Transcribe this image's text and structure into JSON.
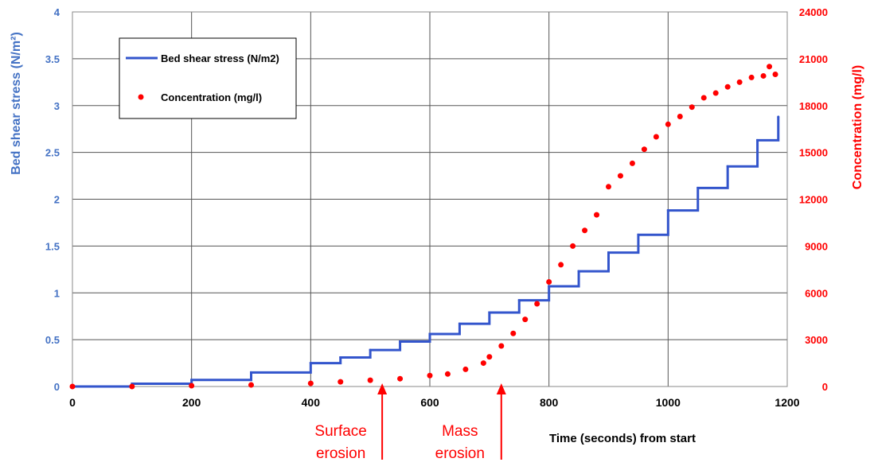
{
  "chart_data": {
    "type": "line",
    "xlabel": "Time (seconds) from start",
    "ylabel": "Bed shear stress (N/m²)",
    "y2label": "Concentration (mg/l)",
    "xlim": [
      0,
      1200
    ],
    "ylim": [
      0,
      4
    ],
    "y2lim": [
      0,
      24000
    ],
    "x_ticks": [
      "0",
      "200",
      "400",
      "600",
      "800",
      "1000",
      "1200"
    ],
    "y_ticks": [
      "0",
      "0.5",
      "1",
      "1.5",
      "2",
      "2.5",
      "3",
      "3.5",
      "4"
    ],
    "y2_ticks": [
      "0",
      "3000",
      "6000",
      "9000",
      "12000",
      "15000",
      "18000",
      "21000",
      "24000"
    ],
    "grid": true,
    "legend_position": "top-left",
    "series": [
      {
        "name": "Bed shear stress (N/m2)",
        "axis": "left",
        "color": "#3355CC",
        "style": "step-line",
        "x": [
          0,
          100,
          200,
          300,
          400,
          450,
          500,
          550,
          600,
          650,
          700,
          750,
          800,
          850,
          900,
          950,
          1000,
          1050,
          1100,
          1150,
          1185
        ],
        "y": [
          0,
          0.03,
          0.07,
          0.15,
          0.25,
          0.31,
          0.39,
          0.48,
          0.56,
          0.67,
          0.79,
          0.92,
          1.07,
          1.23,
          1.43,
          1.62,
          1.88,
          2.12,
          2.35,
          2.63,
          2.88
        ]
      },
      {
        "name": "Concentration (mg/l)",
        "axis": "right",
        "color": "#FF0000",
        "style": "markers",
        "x": [
          0,
          100,
          200,
          300,
          400,
          450,
          500,
          550,
          600,
          630,
          660,
          690,
          700,
          720,
          740,
          760,
          780,
          800,
          820,
          840,
          860,
          880,
          900,
          920,
          940,
          960,
          980,
          1000,
          1020,
          1040,
          1060,
          1080,
          1100,
          1120,
          1140,
          1160,
          1170,
          1180
        ],
        "y": [
          0,
          0,
          50,
          100,
          200,
          300,
          400,
          500,
          700,
          800,
          1100,
          1500,
          1900,
          2600,
          3400,
          4300,
          5300,
          6700,
          7800,
          9000,
          10000,
          11000,
          12800,
          13500,
          14300,
          15200,
          16000,
          16800,
          17300,
          17900,
          18500,
          18800,
          19200,
          19500,
          19800,
          19900,
          20500,
          20000
        ]
      }
    ],
    "annotations": [
      {
        "text_lines": [
          "Surface",
          "erosion"
        ],
        "x": 520
      },
      {
        "text_lines": [
          "Mass",
          "erosion"
        ],
        "x": 720
      }
    ]
  }
}
